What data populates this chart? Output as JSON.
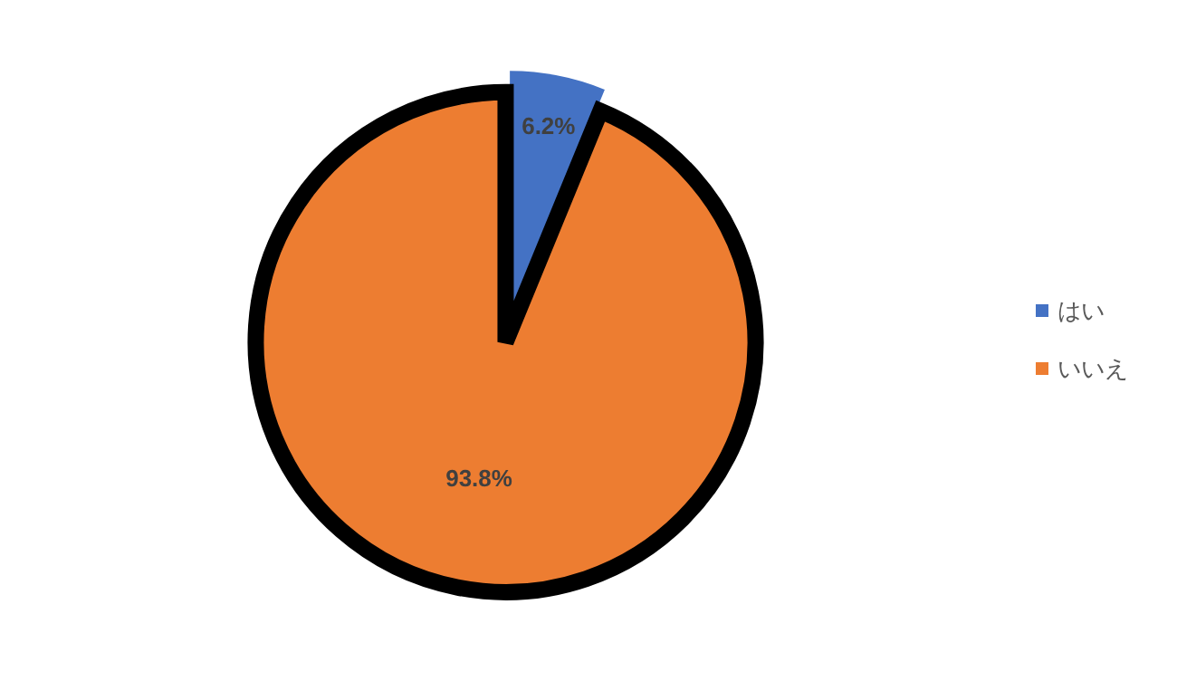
{
  "chart_data": {
    "type": "pie",
    "categories": [
      "はい",
      "いいえ"
    ],
    "values": [
      6.2,
      93.8
    ],
    "value_labels": [
      "6.2%",
      "93.8%"
    ],
    "colors": [
      "#4472c4",
      "#ed7d31"
    ],
    "legend": "right"
  }
}
